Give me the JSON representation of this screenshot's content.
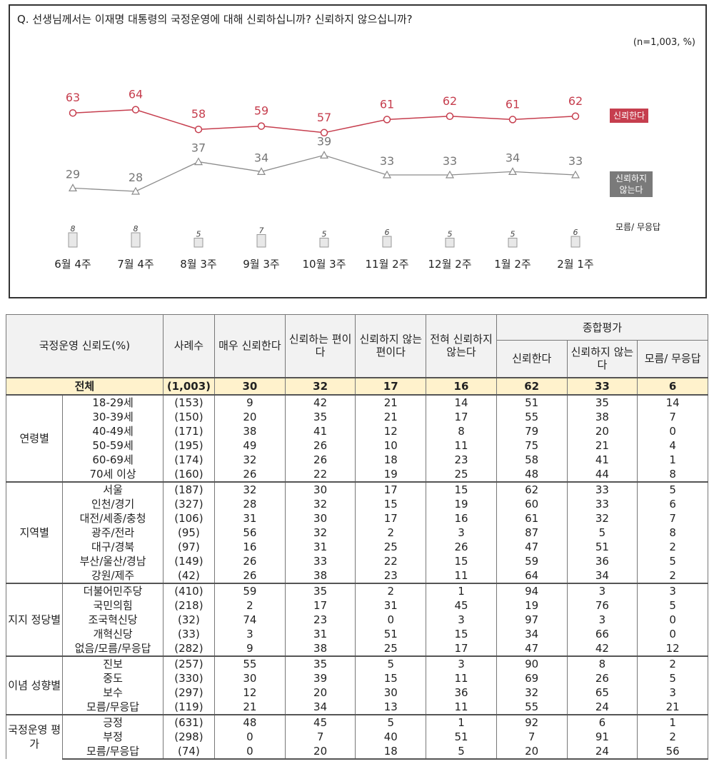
{
  "question": "Q. 선생님께서는 이재명 대통령의 국정운영에 대해 신뢰하십니까? 신뢰하지 않으십니까?",
  "sample_note": "(n=1,003, %)",
  "colors": {
    "trust": "#c63e4e",
    "distrust": "#8c8c8c",
    "unknown_bar": "#e8e8e8",
    "total_row": "#fff2cc"
  },
  "chart_data": {
    "type": "line",
    "x": [
      "6월 4주",
      "7월 4주",
      "8월 3주",
      "9월 3주",
      "10월 3주",
      "11월 2주",
      "12월 2주",
      "1월 2주",
      "2월 1주"
    ],
    "series": [
      {
        "name": "신뢰한다",
        "values": [
          63,
          64,
          58,
          59,
          57,
          61,
          62,
          61,
          62
        ]
      },
      {
        "name": "신뢰하지 않는다",
        "values": [
          29,
          28,
          37,
          34,
          39,
          33,
          33,
          34,
          33
        ]
      },
      {
        "name": "모름/ 무응답",
        "values": [
          8,
          8,
          5,
          7,
          5,
          6,
          5,
          5,
          6
        ]
      }
    ]
  },
  "legend": {
    "trust": "신뢰한다",
    "distrust": "신뢰하지 않는다",
    "unknown": "모름/ 무응답"
  },
  "table": {
    "headers": {
      "title": "국정운영 신뢰도(%)",
      "n": "사례수",
      "very_trust": "매우 신뢰한다",
      "somewhat_trust": "신뢰하는 편이다",
      "somewhat_distrust": "신뢰하지 않는 편이다",
      "not_at_all": "전혀 신뢰하지 않는다",
      "overall": "종합평가",
      "trust": "신뢰한다",
      "distrust": "신뢰하지 않는다",
      "unknown": "모름/ 무응답"
    },
    "total": {
      "label": "전체",
      "n": "(1,003)",
      "v": [
        30,
        32,
        17,
        16,
        62,
        33,
        6
      ]
    },
    "groups": [
      {
        "label": "연령별",
        "rows": [
          {
            "label": "18-29세",
            "n": "(153)",
            "v": [
              9,
              42,
              21,
              14,
              51,
              35,
              14
            ]
          },
          {
            "label": "30-39세",
            "n": "(150)",
            "v": [
              20,
              35,
              21,
              17,
              55,
              38,
              7
            ]
          },
          {
            "label": "40-49세",
            "n": "(171)",
            "v": [
              38,
              41,
              12,
              8,
              79,
              20,
              0
            ]
          },
          {
            "label": "50-59세",
            "n": "(195)",
            "v": [
              49,
              26,
              10,
              11,
              75,
              21,
              4
            ]
          },
          {
            "label": "60-69세",
            "n": "(174)",
            "v": [
              32,
              26,
              18,
              23,
              58,
              41,
              1
            ]
          },
          {
            "label": "70세 이상",
            "n": "(160)",
            "v": [
              26,
              22,
              19,
              25,
              48,
              44,
              8
            ]
          }
        ]
      },
      {
        "label": "지역별",
        "rows": [
          {
            "label": "서울",
            "n": "(187)",
            "v": [
              32,
              30,
              17,
              15,
              62,
              33,
              5
            ]
          },
          {
            "label": "인천/경기",
            "n": "(327)",
            "v": [
              28,
              32,
              15,
              19,
              60,
              33,
              6
            ]
          },
          {
            "label": "대전/세종/충청",
            "n": "(106)",
            "v": [
              31,
              30,
              17,
              16,
              61,
              32,
              7
            ]
          },
          {
            "label": "광주/전라",
            "n": "(95)",
            "v": [
              56,
              32,
              2,
              3,
              87,
              5,
              8
            ]
          },
          {
            "label": "대구/경북",
            "n": "(97)",
            "v": [
              16,
              31,
              25,
              26,
              47,
              51,
              2
            ]
          },
          {
            "label": "부산/울산/경남",
            "n": "(149)",
            "v": [
              26,
              33,
              22,
              15,
              59,
              36,
              5
            ]
          },
          {
            "label": "강원/제주",
            "n": "(42)",
            "v": [
              26,
              38,
              23,
              11,
              64,
              34,
              2
            ]
          }
        ]
      },
      {
        "label": "지지 정당별",
        "rows": [
          {
            "label": "더불어민주당",
            "n": "(410)",
            "v": [
              59,
              35,
              2,
              1,
              94,
              3,
              3
            ]
          },
          {
            "label": "국민의힘",
            "n": "(218)",
            "v": [
              2,
              17,
              31,
              45,
              19,
              76,
              5
            ]
          },
          {
            "label": "조국혁신당",
            "n": "(32)",
            "v": [
              74,
              23,
              0,
              3,
              97,
              3,
              0
            ]
          },
          {
            "label": "개혁신당",
            "n": "(33)",
            "v": [
              3,
              31,
              51,
              15,
              34,
              66,
              0
            ]
          },
          {
            "label": "없음/모름/무응답",
            "n": "(282)",
            "v": [
              9,
              38,
              25,
              17,
              47,
              42,
              12
            ]
          }
        ]
      },
      {
        "label": "이념 성향별",
        "rows": [
          {
            "label": "진보",
            "n": "(257)",
            "v": [
              55,
              35,
              5,
              3,
              90,
              8,
              2
            ]
          },
          {
            "label": "중도",
            "n": "(330)",
            "v": [
              30,
              39,
              15,
              11,
              69,
              26,
              5
            ]
          },
          {
            "label": "보수",
            "n": "(297)",
            "v": [
              12,
              20,
              30,
              36,
              32,
              65,
              3
            ]
          },
          {
            "label": "모름/무응답",
            "n": "(119)",
            "v": [
              21,
              34,
              13,
              11,
              55,
              24,
              21
            ]
          }
        ]
      },
      {
        "label": "국정운영 평가",
        "rows": [
          {
            "label": "긍정",
            "n": "(631)",
            "v": [
              48,
              45,
              5,
              1,
              92,
              6,
              1
            ]
          },
          {
            "label": "부정",
            "n": "(298)",
            "v": [
              0,
              7,
              40,
              51,
              7,
              91,
              2
            ]
          },
          {
            "label": "모름/무응답",
            "n": "(74)",
            "v": [
              0,
              20,
              18,
              5,
              20,
              24,
              56
            ]
          }
        ]
      }
    ]
  }
}
